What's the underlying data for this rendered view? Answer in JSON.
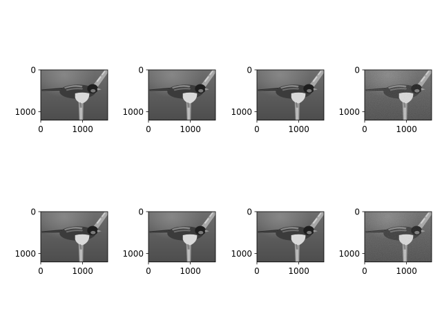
{
  "chart_data": {
    "type": "image_grid",
    "rows": 2,
    "cols": 4,
    "colormap": "gray",
    "subject": "bird on branch",
    "image_width": 1600,
    "image_height": 1200,
    "xlim": [
      0,
      1600
    ],
    "ylim": [
      1200,
      0
    ],
    "x_ticks": [
      0,
      1000
    ],
    "y_ticks": [
      0,
      1000
    ],
    "x_tick_labels": [
      "0",
      "1000"
    ],
    "y_tick_labels": [
      "0",
      "1000"
    ],
    "panels": [
      {
        "row": 0,
        "col": 0,
        "brightness": 1.0,
        "noise": 0.0
      },
      {
        "row": 0,
        "col": 1,
        "brightness": 1.0,
        "noise": 0.0
      },
      {
        "row": 0,
        "col": 2,
        "brightness": 1.0,
        "noise": 0.0
      },
      {
        "row": 0,
        "col": 3,
        "brightness": 1.0,
        "noise": 0.25
      },
      {
        "row": 1,
        "col": 0,
        "brightness": 1.0,
        "noise": 0.0
      },
      {
        "row": 1,
        "col": 1,
        "brightness": 1.0,
        "noise": 0.0
      },
      {
        "row": 1,
        "col": 2,
        "brightness": 1.0,
        "noise": 0.0
      },
      {
        "row": 1,
        "col": 3,
        "brightness": 1.0,
        "noise": 0.25
      }
    ]
  }
}
